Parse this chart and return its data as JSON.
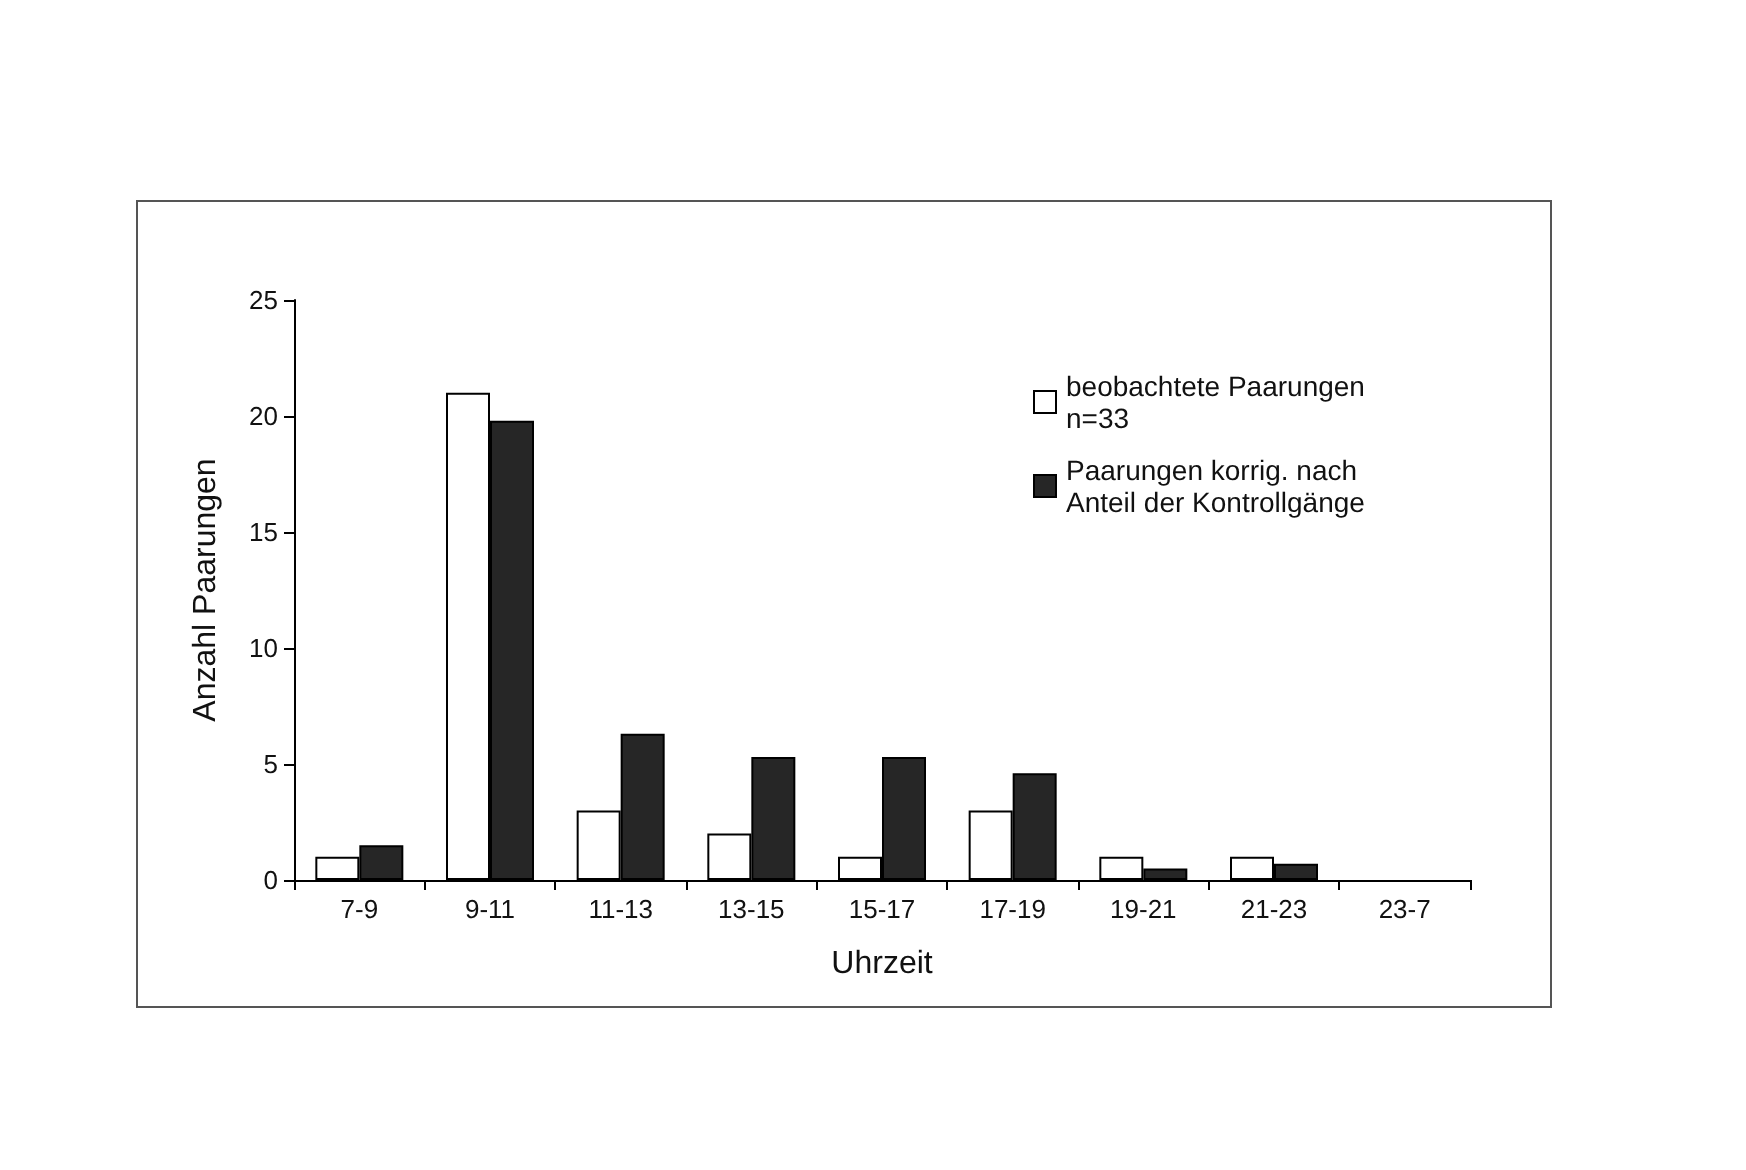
{
  "chart_data": {
    "type": "bar",
    "xlabel": "Uhrzeit",
    "ylabel": "Anzahl Paarungen",
    "categories": [
      "7-9",
      "9-11",
      "11-13",
      "13-15",
      "15-17",
      "17-19",
      "19-21",
      "21-23",
      "23-7"
    ],
    "series": [
      {
        "name": "beobachtete Paarungen n=33",
        "color": "#ffffff",
        "values": [
          1,
          21,
          3,
          2,
          1,
          3,
          1,
          1,
          0
        ]
      },
      {
        "name": "Paarungen korrig. nach Anteil der Kontrollgänge",
        "color": "#262626",
        "values": [
          1.5,
          19.8,
          6.3,
          5.3,
          5.3,
          4.6,
          0.5,
          0.7,
          0
        ]
      }
    ],
    "ylim": [
      0,
      25
    ],
    "yticks": [
      0,
      5,
      10,
      15,
      20,
      25
    ],
    "grid": false,
    "legend": "top right"
  }
}
